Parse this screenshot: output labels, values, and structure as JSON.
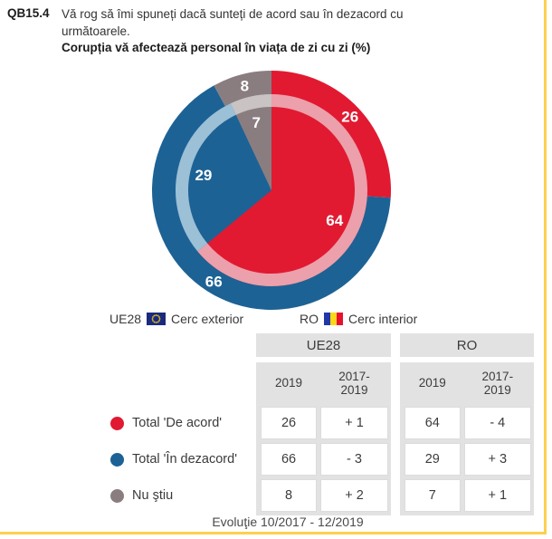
{
  "header": {
    "code": "QB15.4",
    "question_line1": "Vă rog să îmi spuneți dacă sunteți de acord sau în dezacord cu",
    "question_line2": "următoarele.",
    "title": "Corupția vă afectează personal în viața de zi cu zi (%)"
  },
  "legend": {
    "outer": {
      "country": "UE28",
      "text": "Cerc exterior"
    },
    "inner": {
      "country": "RO",
      "text": "Cerc interior"
    }
  },
  "chart_data": {
    "type": "pie",
    "title": "Corupția vă afectează personal în viața de zi cu zi (%)",
    "unit": "%",
    "categories": [
      "Total 'De acord'",
      "Total 'În dezacord'",
      "Nu ştiu"
    ],
    "colors": [
      "#e11a31",
      "#1d6295",
      "#8a7d80"
    ],
    "band_colors": [
      "#eba0ab",
      "#9cc0d6",
      "#c9c3c4"
    ],
    "rings": [
      {
        "name": "UE28",
        "position": "outer",
        "values": [
          26,
          66,
          8
        ]
      },
      {
        "name": "RO",
        "position": "inner",
        "values": [
          64,
          29,
          7
        ]
      }
    ]
  },
  "table": {
    "groups": [
      {
        "label": "UE28"
      },
      {
        "label": "RO"
      }
    ],
    "subcols": [
      "2019",
      "2017-2019"
    ],
    "rows": [
      {
        "label": "Total 'De acord'",
        "color": "#e11a31",
        "cells": [
          "26",
          "+ 1",
          "64",
          "- 4"
        ]
      },
      {
        "label": "Total 'În dezacord'",
        "color": "#1d6295",
        "cells": [
          "66",
          "- 3",
          "29",
          "+ 3"
        ]
      },
      {
        "label": "Nu ştiu",
        "color": "#8a7d80",
        "cells": [
          "8",
          "+ 2",
          "7",
          "+ 1"
        ]
      }
    ]
  },
  "footer": {
    "evolution": "Evoluţie 10/2017 - 12/2019"
  },
  "accent": {
    "frame_yellow": "#fcd04f"
  }
}
